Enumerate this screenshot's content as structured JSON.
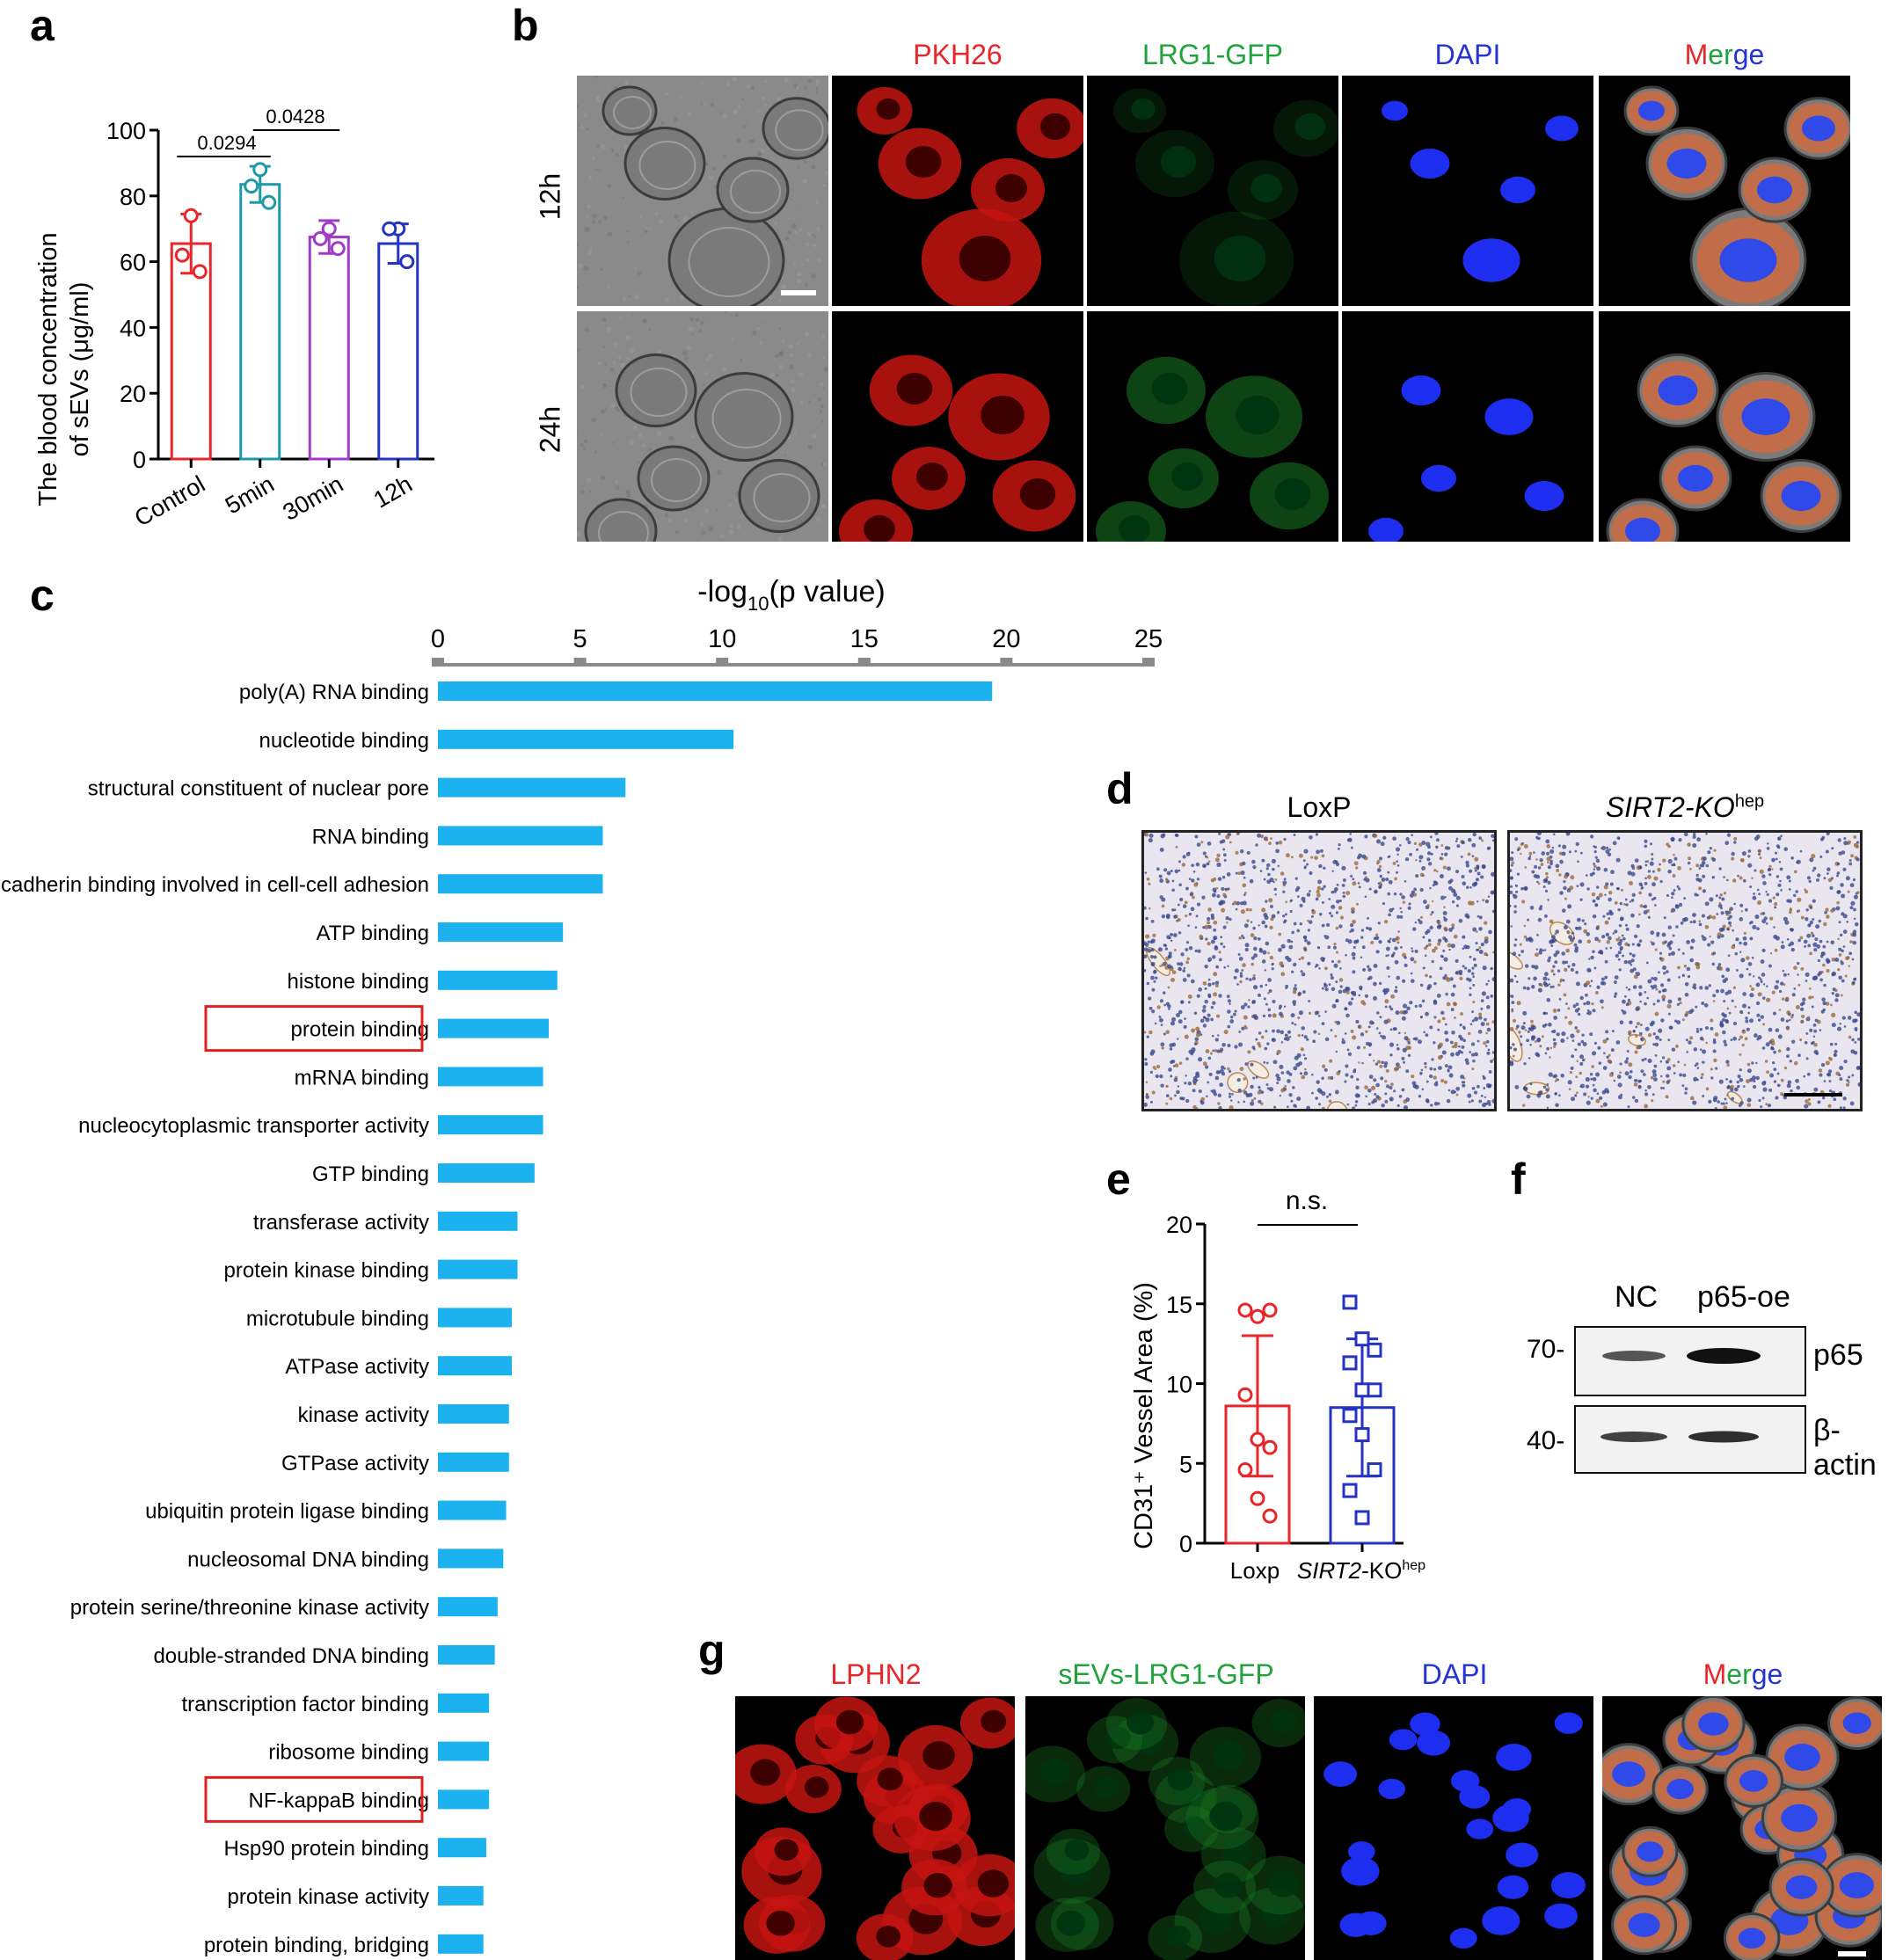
{
  "panels": {
    "a": "a",
    "b": "b",
    "c": "c",
    "d": "d",
    "e": "e",
    "f": "f",
    "g": "g"
  },
  "panel_a": {
    "ylabel_line1": "The blood concentration",
    "ylabel_line2": "of sEVs  (μg/ml)",
    "pvalue_1": "0.0294",
    "pvalue_2": "0.0428",
    "colors": [
      "#e8262a",
      "#1e9aa6",
      "#a03cc8",
      "#2433c4"
    ]
  },
  "panel_b": {
    "channels": [
      "PKH26",
      "LRG1-GFP",
      "DAPI",
      "Merge"
    ],
    "merge_letters": [
      "M",
      "er",
      "ge"
    ],
    "rows": [
      "12h",
      "24h"
    ]
  },
  "panel_c": {
    "axis_title_prefix": "-log",
    "axis_title_sub": "10",
    "axis_title_suffix": "(p value)",
    "bar_color": "#1cb2ef",
    "highlight_color": "#e0201f",
    "highlighted_terms": [
      "protein binding",
      "NF-kappaB binding"
    ]
  },
  "panel_d": {
    "labels": [
      "LoxP",
      "SIRT2-KO"
    ],
    "label_sup": "hep"
  },
  "panel_e": {
    "ylabel": "CD31⁺ Vessel Area  (%)",
    "significance": "n.s.",
    "group_1": "Loxp",
    "group_2_italic": "SIRT2",
    "group_2_rest": "-KO",
    "group_2_sup": "hep"
  },
  "panel_f": {
    "lanes": [
      "NC",
      "p65-oe"
    ],
    "markers": [
      "70-",
      "40-"
    ],
    "proteins": [
      "p65",
      "β-actin"
    ]
  },
  "panel_g": {
    "channels": [
      "LPHN2",
      "sEVs-LRG1-GFP",
      "DAPI",
      "Merge"
    ],
    "merge_letters": [
      "M",
      "er",
      "ge"
    ]
  },
  "chart_data": [
    {
      "type": "bar",
      "panel": "a",
      "categories": [
        "Control",
        "5min",
        "30min",
        "12h"
      ],
      "values": [
        65.5,
        83.5,
        67.5,
        65.5
      ],
      "sd": [
        9,
        5.5,
        5,
        6
      ],
      "points": [
        [
          74,
          62,
          57
        ],
        [
          88,
          83,
          78
        ],
        [
          70,
          67,
          64
        ],
        [
          70,
          70,
          60
        ]
      ],
      "ylim": [
        0,
        100
      ],
      "yticks": [
        0,
        20,
        40,
        60,
        80,
        100
      ],
      "ylabel": "The blood concentration of sEVs  (μg/ml)"
    },
    {
      "type": "bar",
      "panel": "c",
      "orientation": "horizontal",
      "xlabel": "-log10(p value)",
      "xlim": [
        0,
        25
      ],
      "xticks": [
        0,
        5,
        10,
        15,
        20,
        25
      ],
      "categories": [
        "poly(A) RNA binding",
        "nucleotide binding",
        "structural constituent of nuclear pore",
        "RNA binding",
        "cadherin binding involved in cell-cell adhesion",
        "ATP binding",
        "histone binding",
        "protein binding",
        "mRNA binding",
        "nucleocytoplasmic transporter activity",
        "GTP binding",
        "transferase activity",
        "protein kinase binding",
        "microtubule binding",
        "ATPase activity",
        "kinase activity",
        "GTPase activity",
        "ubiquitin protein ligase binding",
        "nucleosomal DNA binding",
        "protein serine/threonine kinase activity",
        "double-stranded DNA binding",
        "transcription factor binding",
        "ribosome binding",
        "NF-kappaB binding",
        "Hsp90 protein binding",
        "protein kinase activity",
        "protein binding, bridging"
      ],
      "values": [
        19.5,
        10.4,
        6.6,
        5.8,
        5.8,
        4.4,
        4.2,
        3.9,
        3.7,
        3.7,
        3.4,
        2.8,
        2.8,
        2.6,
        2.6,
        2.5,
        2.5,
        2.4,
        2.3,
        2.1,
        2.0,
        1.8,
        1.8,
        1.8,
        1.7,
        1.6,
        1.6
      ]
    },
    {
      "type": "bar",
      "panel": "e",
      "categories": [
        "Loxp",
        "SIRT2-KOhep"
      ],
      "values": [
        8.6,
        8.5
      ],
      "sd": [
        4.4,
        4.3
      ],
      "points": [
        [
          14.6,
          14.2,
          14.6,
          9.3,
          6.5,
          6.0,
          4.6,
          2.8,
          1.7
        ],
        [
          15.1,
          12.8,
          12.1,
          11.3,
          9.6,
          9.6,
          8.0,
          6.8,
          4.6,
          3.3,
          1.6
        ]
      ],
      "ylim": [
        0,
        20
      ],
      "yticks": [
        0,
        5,
        10,
        15,
        20
      ],
      "ylabel": "CD31⁺ Vessel Area  (%)"
    }
  ]
}
